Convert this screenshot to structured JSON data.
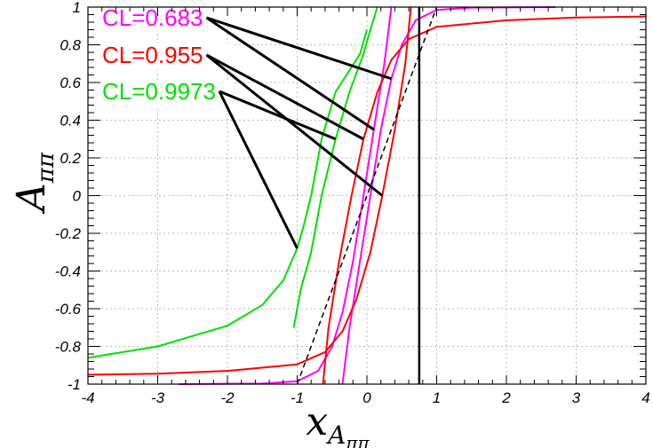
{
  "chart_data": {
    "type": "line",
    "xlabel": {
      "main": "x",
      "sub": "A",
      "subsub": "ππ"
    },
    "ylabel": {
      "main": "A",
      "sub": "ππ"
    },
    "xlim": [
      -4,
      4
    ],
    "ylim": [
      -1,
      1
    ],
    "x_ticks": [
      -4,
      -3,
      -2,
      -1,
      0,
      1,
      2,
      3,
      4
    ],
    "y_ticks": [
      -1,
      -0.8,
      -0.6,
      -0.4,
      -0.2,
      0,
      0.2,
      0.4,
      0.6,
      0.8,
      1
    ],
    "x_tick_labels": [
      "-4",
      "-3",
      "-2",
      "-1",
      "0",
      "1",
      "2",
      "3",
      "4"
    ],
    "y_tick_labels": [
      "-1",
      "-0.8",
      "-0.6",
      "-0.4",
      "-0.2",
      "0",
      "0.2",
      "0.4",
      "0.6",
      "0.8",
      "1"
    ],
    "grid": true,
    "vertical_line_x": 0.75,
    "central_line": {
      "style": "dashed",
      "color": "#000000",
      "points": [
        [
          -1.0,
          -1.0
        ],
        [
          0.0,
          0.0
        ],
        [
          1.0,
          1.0
        ]
      ]
    },
    "series": [
      {
        "label": "CL=0.683",
        "color": "#ff00ff",
        "cl_band": "upper",
        "points": [
          [
            -0.35,
            -1.0
          ],
          [
            -0.25,
            -0.7
          ],
          [
            -0.1,
            -0.35
          ],
          [
            0.05,
            0.0
          ],
          [
            0.2,
            0.35
          ],
          [
            0.35,
            0.62
          ],
          [
            0.5,
            0.8
          ],
          [
            0.7,
            0.93
          ],
          [
            1.0,
            0.985
          ],
          [
            1.5,
            0.997
          ],
          [
            2.7,
            1.0
          ]
        ]
      },
      {
        "label": "",
        "color": "#ff00ff",
        "cl_band": "lower",
        "points": [
          [
            -2.7,
            -1.0
          ],
          [
            -1.5,
            -0.997
          ],
          [
            -1.0,
            -0.985
          ],
          [
            -0.7,
            -0.93
          ],
          [
            -0.5,
            -0.8
          ],
          [
            -0.35,
            -0.62
          ],
          [
            -0.2,
            -0.35
          ],
          [
            -0.05,
            0.0
          ],
          [
            0.1,
            0.35
          ],
          [
            0.25,
            0.7
          ],
          [
            0.35,
            1.0
          ]
        ]
      },
      {
        "label": "CL=0.955",
        "color": "#ff0000",
        "cl_band": "upper",
        "points": [
          [
            -0.63,
            -1.0
          ],
          [
            -0.55,
            -0.7
          ],
          [
            -0.4,
            -0.35
          ],
          [
            -0.22,
            0.0
          ],
          [
            -0.05,
            0.3
          ],
          [
            0.15,
            0.55
          ],
          [
            0.35,
            0.72
          ],
          [
            0.6,
            0.83
          ],
          [
            1.0,
            0.895
          ],
          [
            2.0,
            0.93
          ],
          [
            3.0,
            0.945
          ],
          [
            4.0,
            0.95
          ]
        ]
      },
      {
        "label": "",
        "color": "#ff0000",
        "cl_band": "lower",
        "points": [
          [
            -4.0,
            -0.95
          ],
          [
            -3.0,
            -0.945
          ],
          [
            -2.0,
            -0.93
          ],
          [
            -1.0,
            -0.895
          ],
          [
            -0.6,
            -0.83
          ],
          [
            -0.35,
            -0.72
          ],
          [
            -0.15,
            -0.55
          ],
          [
            0.05,
            -0.3
          ],
          [
            0.22,
            0.0
          ],
          [
            0.4,
            0.35
          ],
          [
            0.55,
            0.7
          ],
          [
            0.63,
            1.0
          ]
        ]
      },
      {
        "label": "CL=0.9973",
        "color": "#00e000",
        "cl_band": "upper",
        "points": [
          [
            -1.05,
            -0.7
          ],
          [
            -0.95,
            -0.5
          ],
          [
            -0.8,
            -0.3
          ],
          [
            -0.65,
            0.0
          ],
          [
            -0.45,
            0.3
          ],
          [
            -0.25,
            0.55
          ],
          [
            -0.05,
            0.75
          ],
          [
            0.05,
            0.88
          ],
          [
            0.15,
            1.0
          ]
        ]
      },
      {
        "label": "",
        "color": "#00e000",
        "cl_band": "lower",
        "points": [
          [
            -4.0,
            -0.86
          ],
          [
            -3.0,
            -0.8
          ],
          [
            -2.0,
            -0.69
          ],
          [
            -1.5,
            -0.58
          ],
          [
            -1.2,
            -0.45
          ],
          [
            -1.0,
            -0.28
          ],
          [
            -0.9,
            -0.15
          ],
          [
            -0.8,
            0.0
          ],
          [
            -0.65,
            0.3
          ],
          [
            -0.45,
            0.55
          ],
          [
            -0.1,
            0.75
          ],
          [
            0.0,
            0.88
          ]
        ]
      }
    ]
  }
}
